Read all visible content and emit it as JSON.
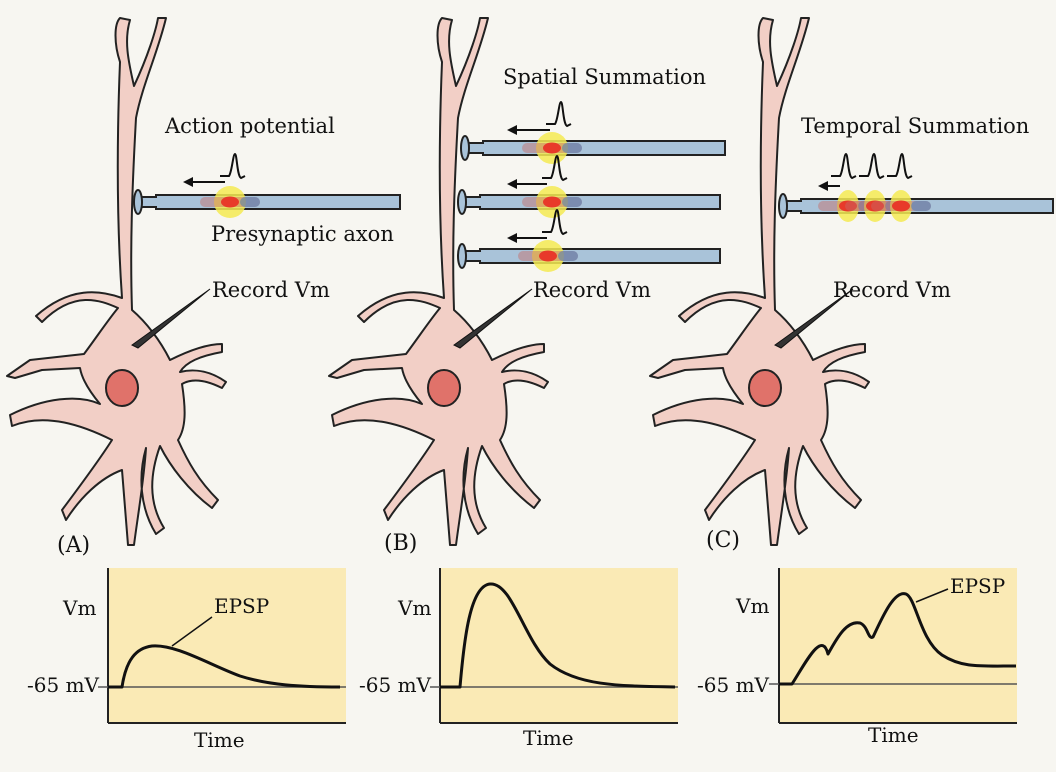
{
  "panel_a": {
    "letter": "(A)",
    "title": "Action potential",
    "axon_label": "Presynaptic axon",
    "electrode_label": "Record Vm",
    "graph": {
      "ylabel": "Vm",
      "baseline_label": "-65 mV",
      "xlabel": "Time",
      "curve_label": "EPSP"
    }
  },
  "panel_b": {
    "letter": "(B)",
    "title": "Spatial Summation",
    "electrode_label": "Record Vm",
    "graph": {
      "ylabel": "Vm",
      "baseline_label": "-65 mV",
      "xlabel": "Time"
    }
  },
  "panel_c": {
    "letter": "(C)",
    "title": "Temporal Summation",
    "electrode_label": "Record Vm",
    "graph": {
      "ylabel": "Vm",
      "baseline_label": "-65 mV",
      "xlabel": "Time",
      "curve_label": "EPSP"
    }
  },
  "colors": {
    "neuron_fill": "#f2cfc6",
    "nucleus_fill": "#e0726a",
    "axon_fill": "#a9c3d9",
    "graph_bg": "#faeab5",
    "spike_highlight": "#f4ea52",
    "spike_core": "#e83a2a"
  }
}
